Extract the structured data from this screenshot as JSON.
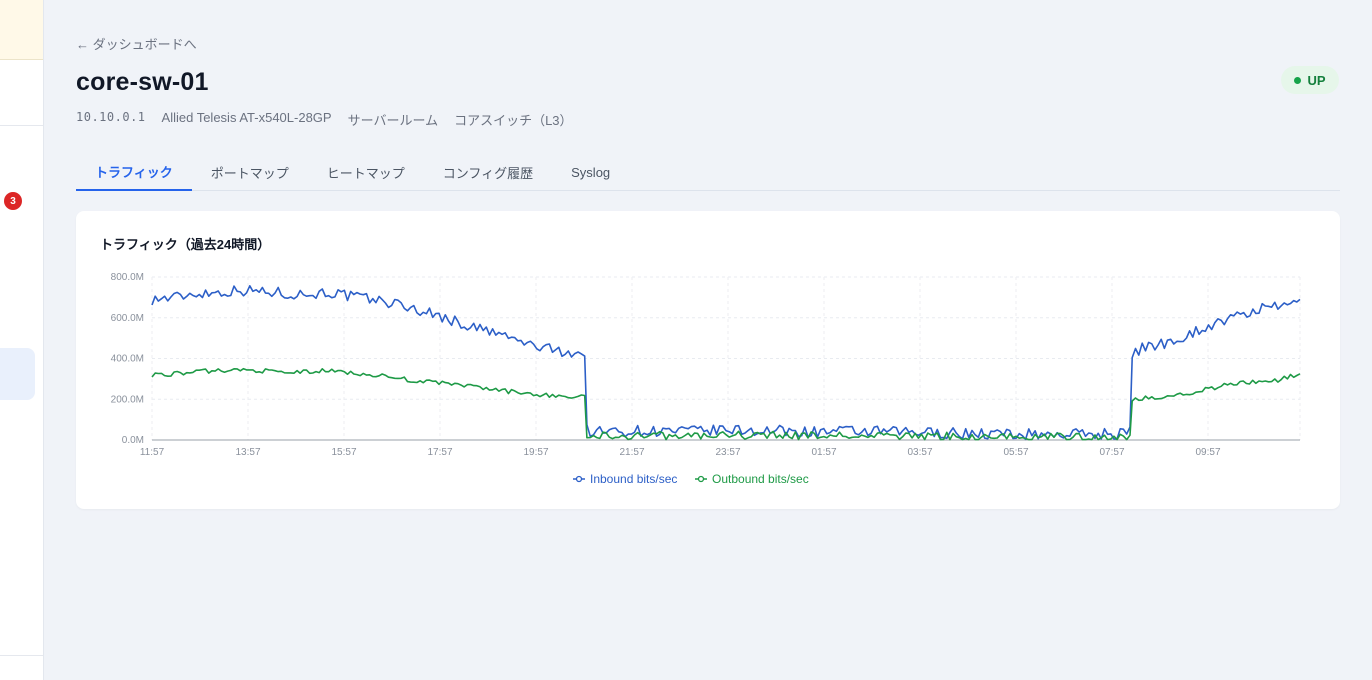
{
  "sidebar": {
    "badge_count": "3"
  },
  "header": {
    "back_link": "← ダッシュボードへ",
    "title": "core-sw-01",
    "status": "UP",
    "meta": {
      "ip": "10.10.0.1",
      "model": "Allied Telesis AT-x540L-28GP",
      "location": "サーバールーム",
      "role": "コアスイッチ（L3）"
    }
  },
  "tabs": [
    {
      "label": "トラフィック",
      "active": true
    },
    {
      "label": "ポートマップ",
      "active": false
    },
    {
      "label": "ヒートマップ",
      "active": false
    },
    {
      "label": "コンフィグ履歴",
      "active": false
    },
    {
      "label": "Syslog",
      "active": false
    }
  ],
  "colors": {
    "accent": "#2563eb",
    "inbound": "#2c5fc7",
    "outbound": "#1e9a46",
    "status_up": "#16a34a"
  },
  "chart_data": {
    "type": "line",
    "title": "トラフィック（過去24時間）",
    "ylim": [
      0,
      800
    ],
    "y_ticks": [
      {
        "value": 0,
        "label": "0.0M"
      },
      {
        "value": 200,
        "label": "200.0M"
      },
      {
        "value": 400,
        "label": "400.0M"
      },
      {
        "value": 600,
        "label": "600.0M"
      },
      {
        "value": 800,
        "label": "800.0M"
      }
    ],
    "x_ticks": [
      "11:57",
      "13:57",
      "15:57",
      "17:57",
      "19:57",
      "21:57",
      "23:57",
      "01:57",
      "03:57",
      "05:57",
      "07:57",
      "09:57"
    ],
    "x_range_hours": [
      0,
      24
    ],
    "grid": true,
    "legend_position": "bottom",
    "series": [
      {
        "name": "Inbound bits/sec",
        "color": "#2c5fc7",
        "points": [
          [
            0,
            690
          ],
          [
            0.5,
            700
          ],
          [
            1,
            720
          ],
          [
            1.5,
            725
          ],
          [
            2,
            735
          ],
          [
            2.5,
            730
          ],
          [
            3,
            720
          ],
          [
            3.5,
            715
          ],
          [
            4,
            725
          ],
          [
            4.5,
            705
          ],
          [
            5,
            690
          ],
          [
            5.5,
            670
          ],
          [
            6,
            640
          ],
          [
            6.5,
            610
          ],
          [
            7,
            570
          ],
          [
            7.5,
            540
          ],
          [
            8,
            510
          ],
          [
            8.5,
            470
          ],
          [
            9,
            445
          ],
          [
            9.5,
            430
          ],
          [
            9.8,
            422
          ],
          [
            9.85,
            50
          ],
          [
            10,
            40
          ],
          [
            11,
            45
          ],
          [
            12,
            42
          ],
          [
            13,
            48
          ],
          [
            14,
            45
          ],
          [
            15,
            40
          ],
          [
            16,
            42
          ],
          [
            17,
            38
          ],
          [
            18,
            35
          ],
          [
            19,
            30
          ],
          [
            20,
            28
          ],
          [
            21,
            30
          ],
          [
            22,
            32
          ],
          [
            22.15,
            38
          ],
          [
            22.2,
            430
          ],
          [
            22.5,
            455
          ],
          [
            23,
            480
          ],
          [
            23.5,
            520
          ],
          [
            24,
            565
          ],
          [
            24.5,
            600
          ],
          [
            24.8,
            620
          ],
          [
            25,
            640
          ],
          [
            25.5,
            650
          ],
          [
            26,
            690
          ]
        ]
      },
      {
        "name": "Outbound bits/sec",
        "color": "#1e9a46",
        "points": [
          [
            0,
            320
          ],
          [
            0.5,
            325
          ],
          [
            1,
            335
          ],
          [
            1.5,
            340
          ],
          [
            2,
            345
          ],
          [
            2.5,
            340
          ],
          [
            3,
            330
          ],
          [
            3.5,
            335
          ],
          [
            4,
            340
          ],
          [
            4.5,
            330
          ],
          [
            5,
            320
          ],
          [
            5.5,
            305
          ],
          [
            6,
            290
          ],
          [
            6.5,
            280
          ],
          [
            7,
            270
          ],
          [
            7.5,
            255
          ],
          [
            8,
            240
          ],
          [
            8.5,
            228
          ],
          [
            9,
            220
          ],
          [
            9.5,
            212
          ],
          [
            9.8,
            210
          ],
          [
            9.85,
            25
          ],
          [
            10,
            20
          ],
          [
            11,
            22
          ],
          [
            12,
            21
          ],
          [
            13,
            24
          ],
          [
            14,
            22
          ],
          [
            15,
            20
          ],
          [
            16,
            21
          ],
          [
            17,
            19
          ],
          [
            18,
            18
          ],
          [
            19,
            15
          ],
          [
            20,
            14
          ],
          [
            21,
            15
          ],
          [
            22,
            16
          ],
          [
            22.15,
            19
          ],
          [
            22.2,
            195
          ],
          [
            22.5,
            205
          ],
          [
            23,
            215
          ],
          [
            23.5,
            230
          ],
          [
            24,
            255
          ],
          [
            24.5,
            275
          ],
          [
            25,
            285
          ],
          [
            25.5,
            295
          ],
          [
            26,
            325
          ]
        ]
      }
    ]
  }
}
